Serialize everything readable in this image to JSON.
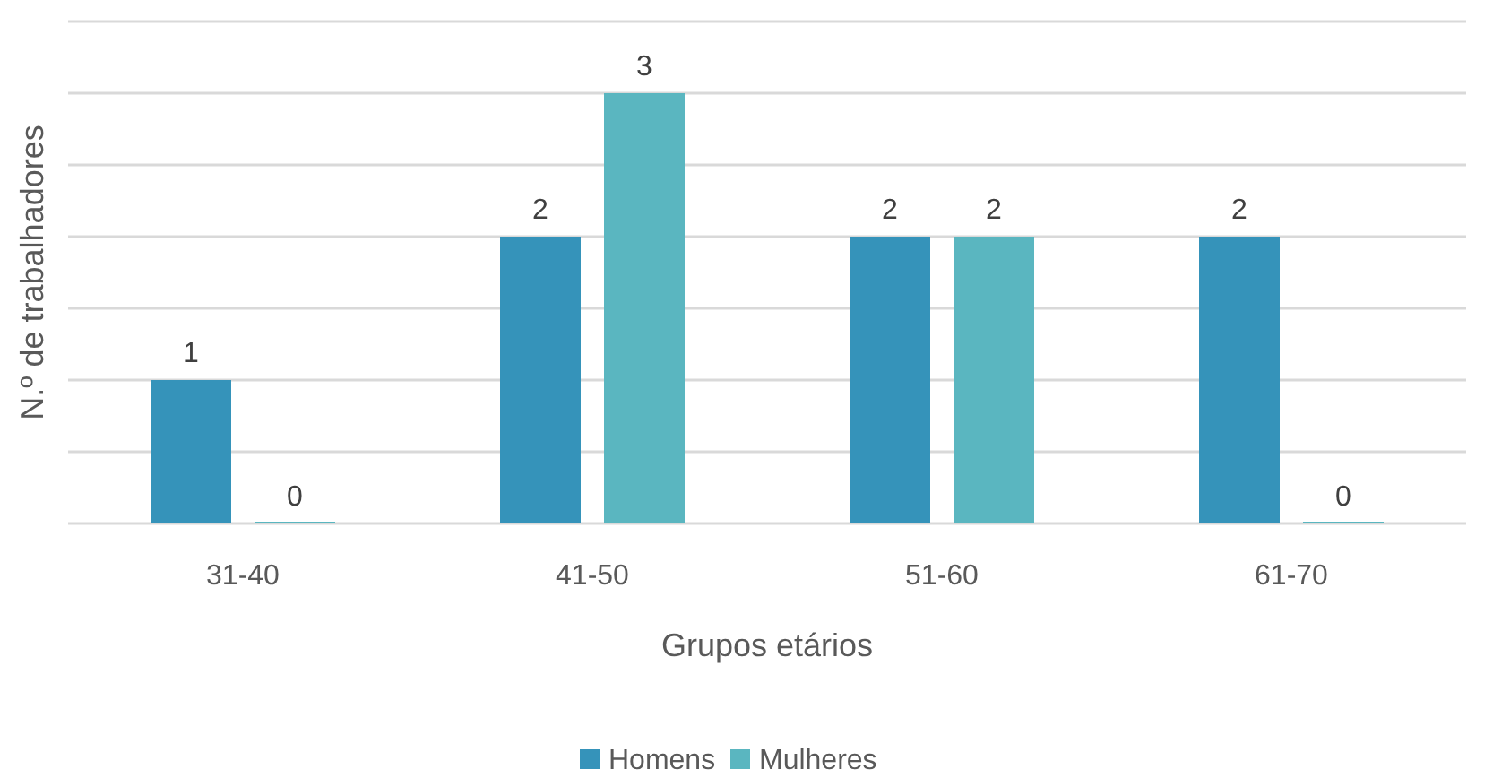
{
  "chart_data": {
    "type": "bar",
    "xlabel": "Grupos etários",
    "ylabel": "N.º de trabalhadores",
    "categories": [
      "31-40",
      "41-50",
      "51-60",
      "61-70"
    ],
    "series": [
      {
        "name": "Homens",
        "color": "#3593ba",
        "values": [
          1,
          2,
          2,
          2
        ]
      },
      {
        "name": "Mulheres",
        "color": "#5ab6c0",
        "values": [
          0,
          3,
          2,
          0
        ]
      }
    ],
    "ylim": [
      0,
      3.5
    ],
    "yticks": [
      {
        "value": 0,
        "label": null
      },
      {
        "value": 0.5,
        "label": null
      },
      {
        "value": 1,
        "label": null
      },
      {
        "value": 1.5,
        "label": null
      },
      {
        "value": 2,
        "label": null
      },
      {
        "value": 2.5,
        "label": null
      },
      {
        "value": 3,
        "label": null
      },
      {
        "value": 3.5,
        "label": null
      }
    ],
    "grid": "y",
    "tick_labels": "x",
    "data_labels": true,
    "legend": "bottom"
  }
}
